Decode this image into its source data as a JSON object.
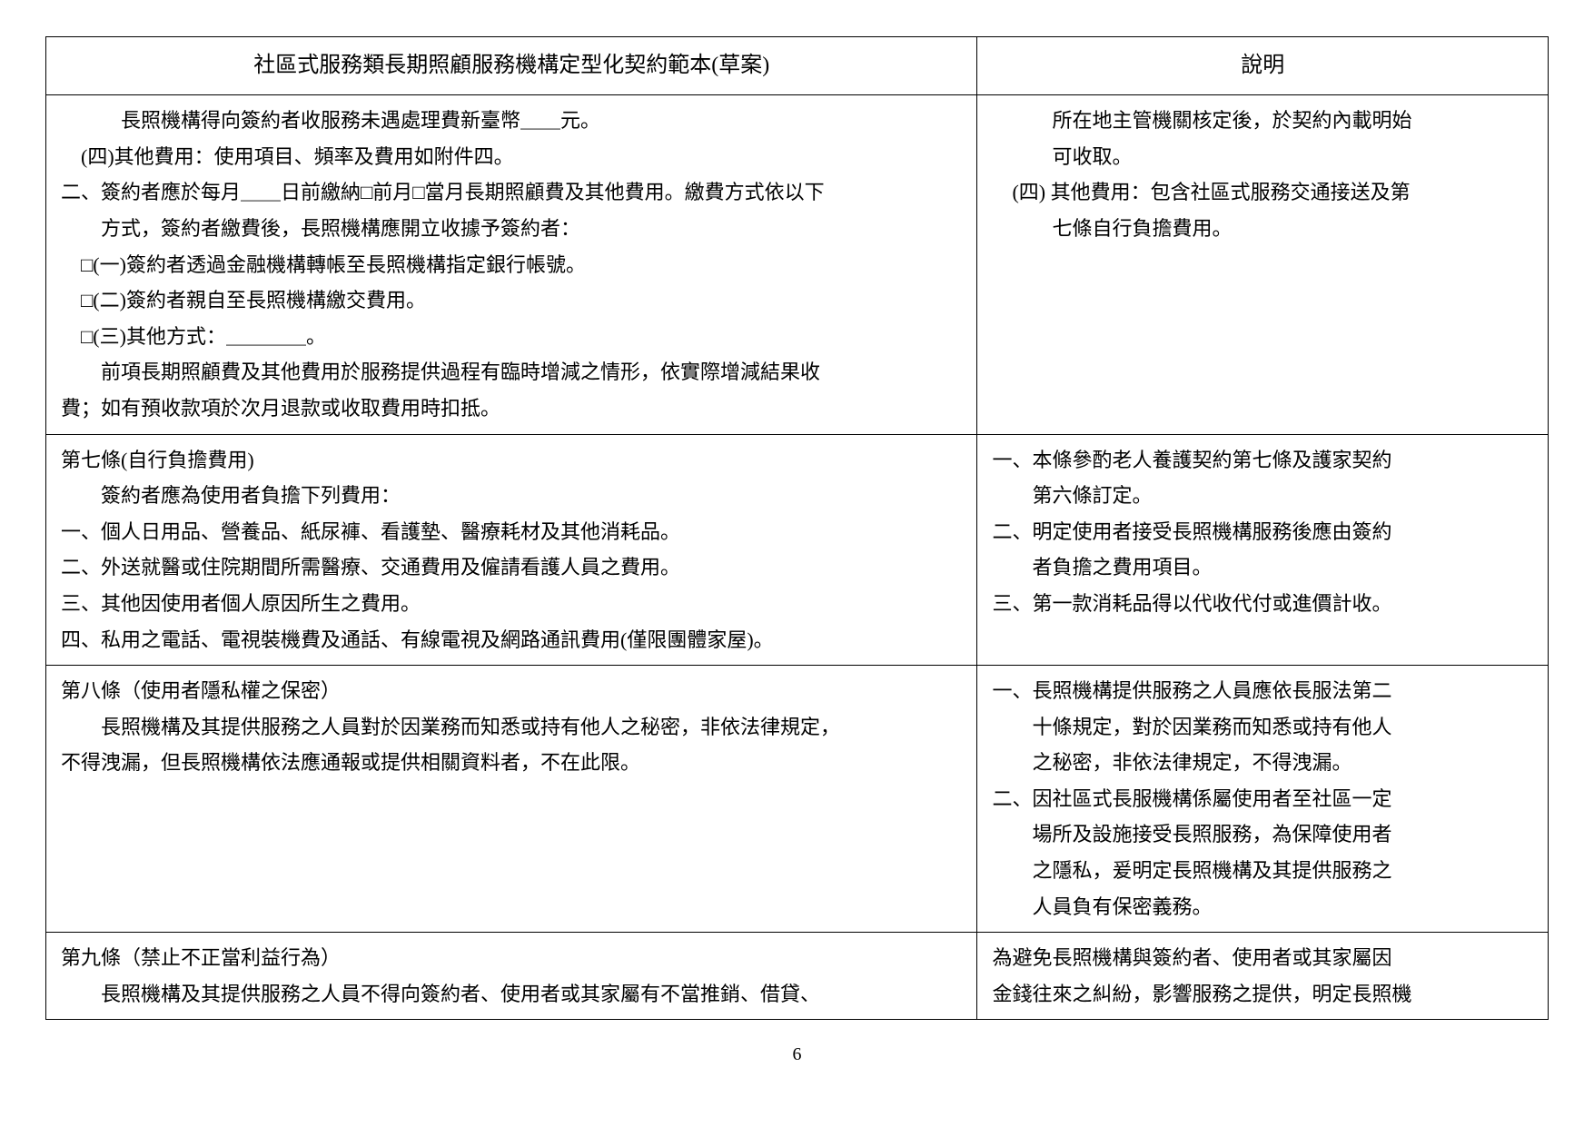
{
  "header": {
    "left": "社區式服務類長期照顧服務機構定型化契約範本(草案)",
    "right": "說明"
  },
  "rows": [
    {
      "left": [
        "　　　長照機構得向簽約者收服務未遇處理費新臺幣＿＿元。",
        "　(四)其他費用：使用項目、頻率及費用如附件四。",
        "二、簽約者應於每月＿＿日前繳納□前月□當月長期照顧費及其他費用。繳費方式依以下",
        "　　方式，簽約者繳費後，長照機構應開立收據予簽約者：",
        "　□(一)簽約者透過金融機構轉帳至長照機構指定銀行帳號。",
        "　□(二)簽約者親自至長照機構繳交費用。",
        "　□(三)其他方式：＿＿＿＿。",
        "　　前項長期照顧費及其他費用於服務提供過程有臨時增減之情形，依實際增減結果收",
        "費；如有預收款項於次月退款或收取費用時扣抵。"
      ],
      "right": [
        "　　　所在地主管機關核定後，於契約內載明始",
        "　　　可收取。",
        "　(四) 其他費用：包含社區式服務交通接送及第",
        "　　　七條自行負擔費用。"
      ]
    },
    {
      "left": [
        "第七條(自行負擔費用)",
        "　　簽約者應為使用者負擔下列費用：",
        "一、個人日用品、營養品、紙尿褲、看護墊、醫療耗材及其他消耗品。",
        "二、外送就醫或住院期間所需醫療、交通費用及僱請看護人員之費用。",
        "三、其他因使用者個人原因所生之費用。",
        "四、私用之電話、電視裝機費及通話、有線電視及網路通訊費用(僅限團體家屋)。"
      ],
      "right": [
        "一、本條參酌老人養護契約第七條及護家契約",
        "　　第六條訂定。",
        "二、明定使用者接受長照機構服務後應由簽約",
        "　　者負擔之費用項目。",
        "三、第一款消耗品得以代收代付或進價計收。"
      ]
    },
    {
      "left": [
        "第八條（使用者隱私權之保密）",
        "　　長照機構及其提供服務之人員對於因業務而知悉或持有他人之秘密，非依法律規定，",
        "不得洩漏，但長照機構依法應通報或提供相關資料者，不在此限。"
      ],
      "right": [
        "一、長照機構提供服務之人員應依長服法第二",
        "　　十條規定，對於因業務而知悉或持有他人",
        "　　之秘密，非依法律規定，不得洩漏。",
        "二、因社區式長服機構係屬使用者至社區一定",
        "　　場所及設施接受長照服務，為保障使用者",
        "　　之隱私，爰明定長照機構及其提供服務之",
        "　　人員負有保密義務。"
      ]
    },
    {
      "left": [
        "第九條（禁止不正當利益行為）",
        "　　長照機構及其提供服務之人員不得向簽約者、使用者或其家屬有不當推銷、借貸、"
      ],
      "right": [
        "為避免長照機構與簽約者、使用者或其家屬因",
        "金錢往來之糾紛，影響服務之提供，明定長照機"
      ]
    }
  ],
  "page_number": "6"
}
